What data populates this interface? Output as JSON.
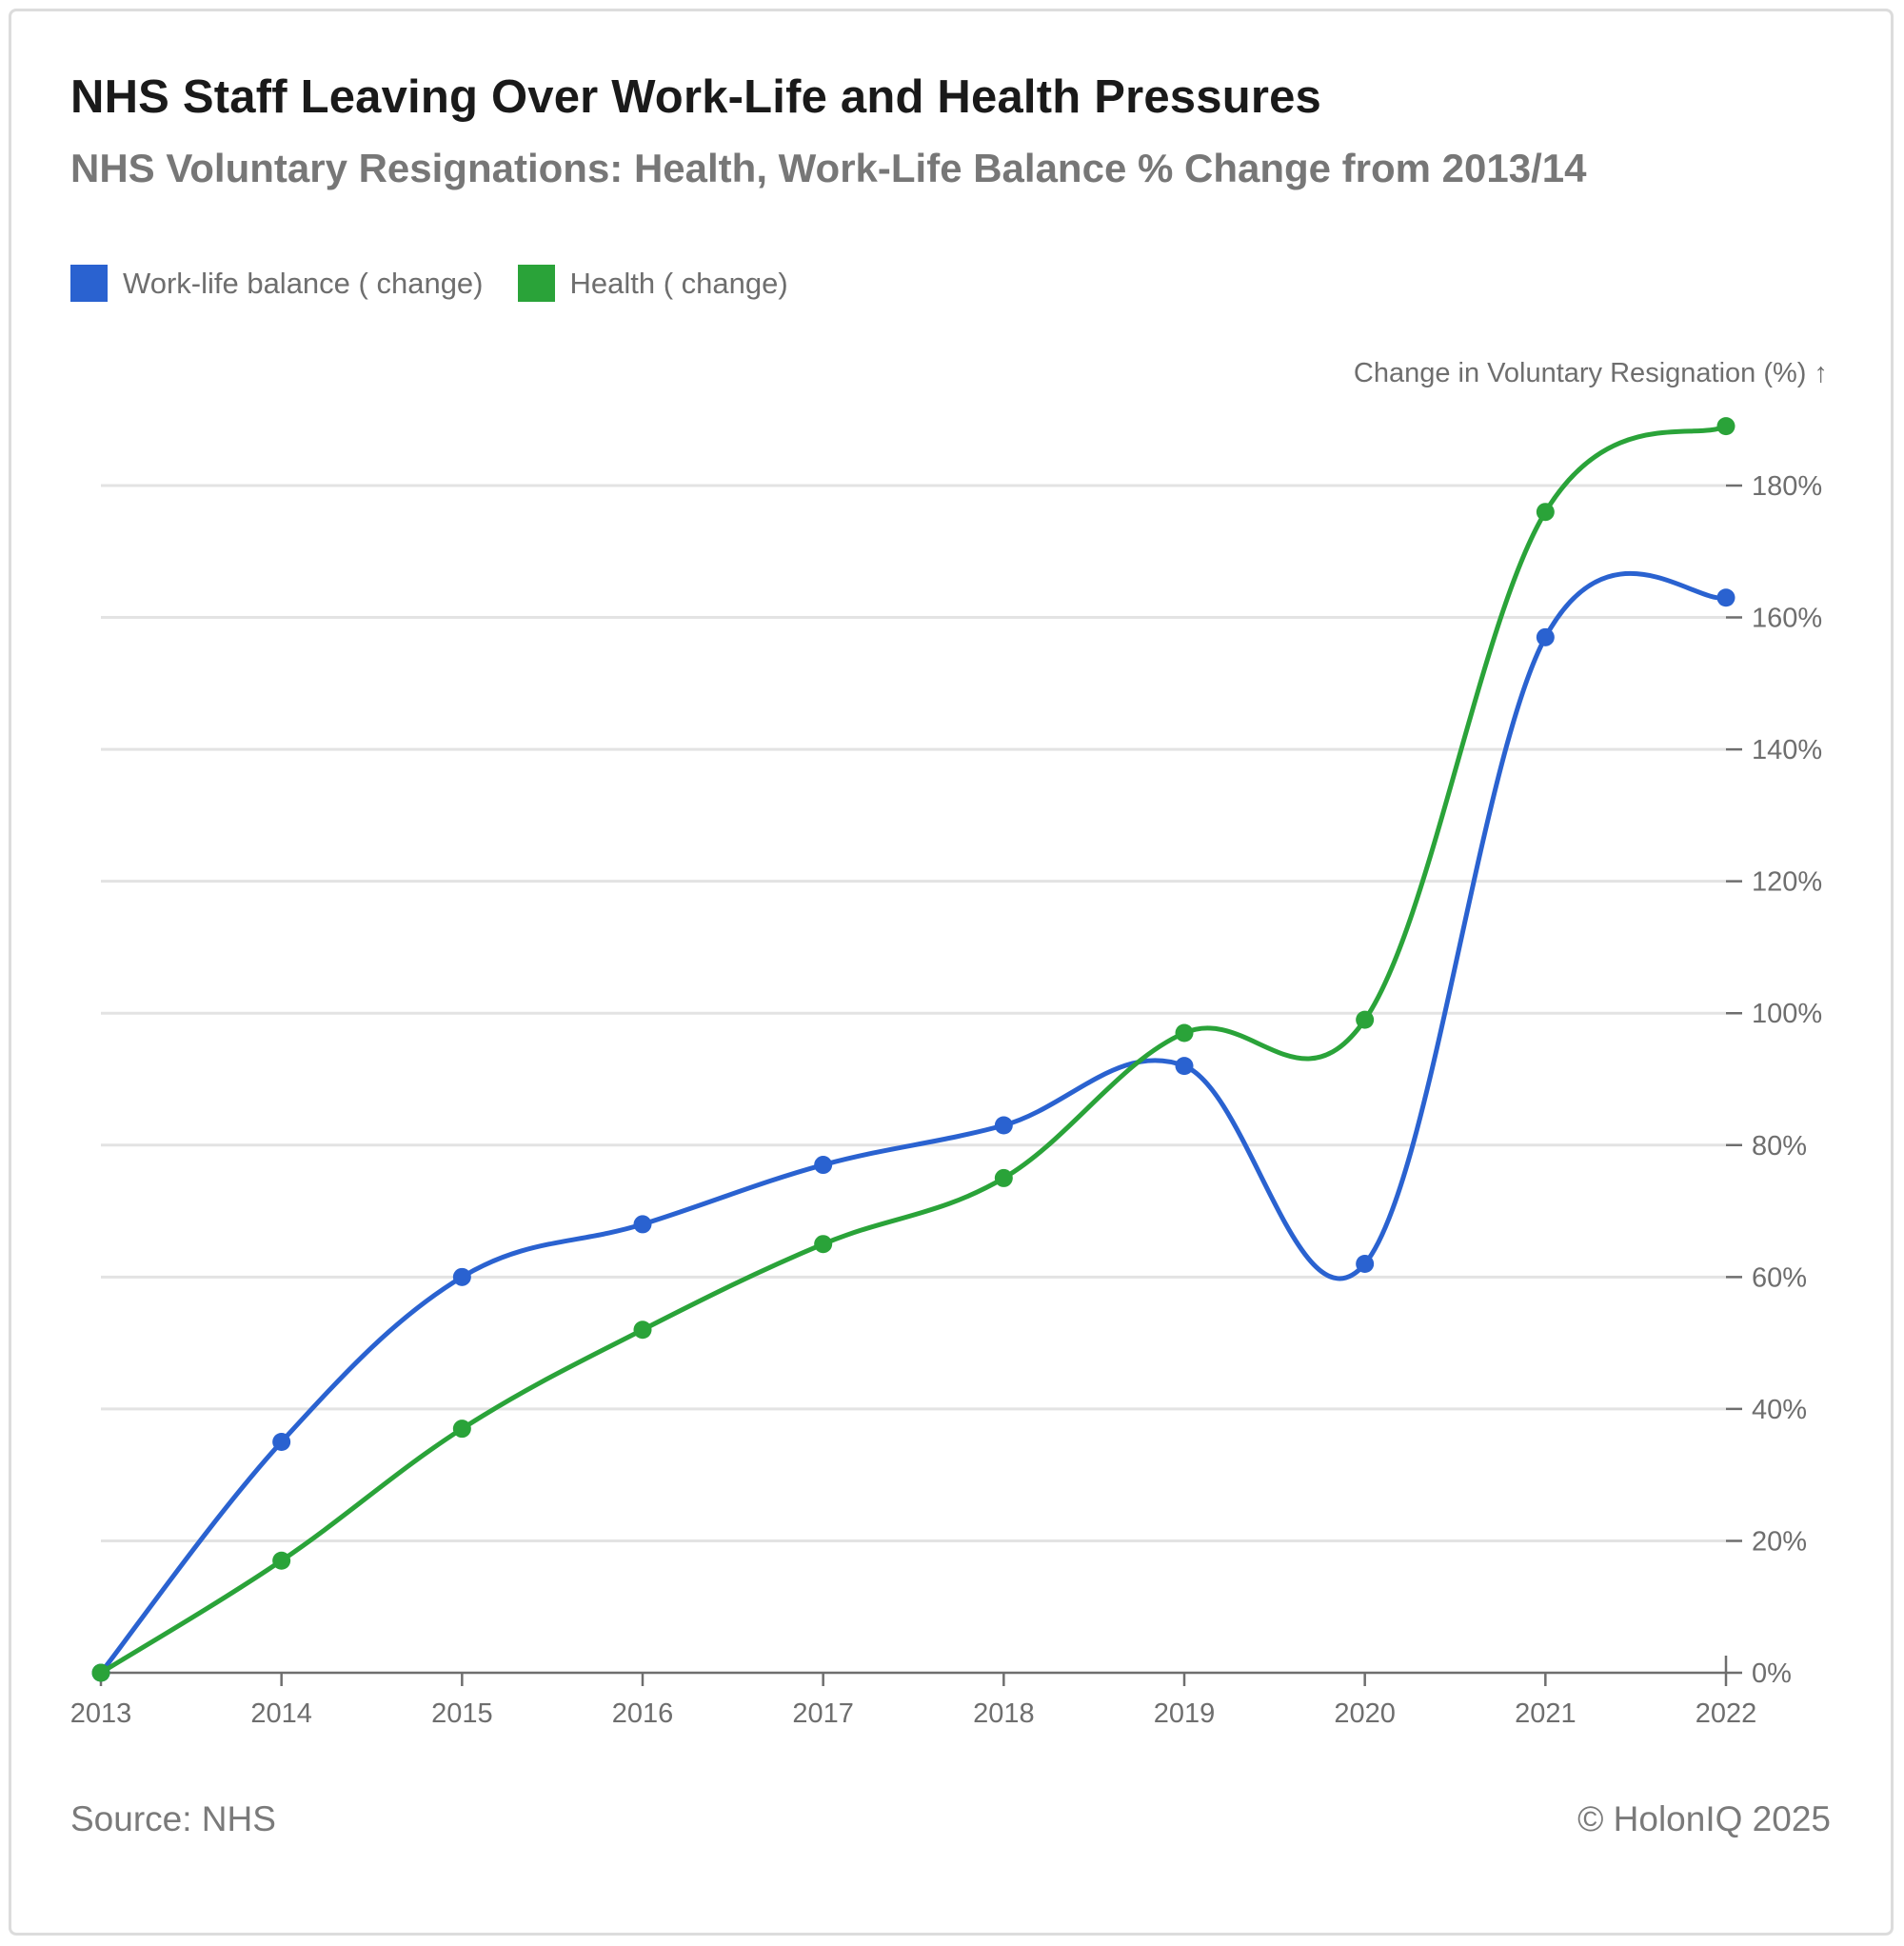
{
  "footer": {
    "source": "Source: NHS",
    "copyright": "© HolonIQ 2025"
  },
  "chart_data": {
    "type": "line",
    "title": "NHS Staff Leaving Over Work-Life and Health Pressures",
    "subtitle": "NHS Voluntary Resignations: Health, Work-Life Balance % Change from 2013/14",
    "ylabel": "Change in Voluntary Resignation (%) ↑",
    "xlabel": "",
    "x": [
      "2013",
      "2014",
      "2015",
      "2016",
      "2017",
      "2018",
      "2019",
      "2020",
      "2021",
      "2022"
    ],
    "ylim": [
      0,
      180
    ],
    "yticks": [
      0,
      20,
      40,
      60,
      80,
      100,
      120,
      140,
      160,
      180
    ],
    "ytick_labels": [
      "0%",
      "20%",
      "40%",
      "60%",
      "80%",
      "100%",
      "120%",
      "140%",
      "160%",
      "180%"
    ],
    "grid": true,
    "legend_position": "top-left",
    "series": [
      {
        "name": "Work-life balance ( change)",
        "color": "#2a62d0",
        "values": [
          0,
          35,
          60,
          68,
          77,
          83,
          92,
          62,
          157,
          163
        ]
      },
      {
        "name": "Health ( change)",
        "color": "#2aa339",
        "values": [
          0,
          17,
          37,
          52,
          65,
          75,
          97,
          99,
          176,
          189
        ]
      }
    ]
  }
}
